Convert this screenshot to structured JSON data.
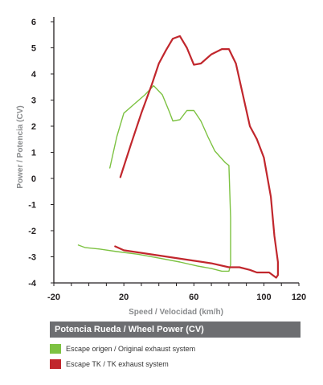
{
  "chart_data": {
    "type": "line",
    "xlabel": "Speed / Velocidad (km/h)",
    "ylabel": "Power / Potencia (CV)",
    "xlim": [
      -20,
      120
    ],
    "ylim": [
      -4,
      6
    ],
    "xticks": [
      "-20",
      "20",
      "60",
      "100",
      "120"
    ],
    "xtick_values": [
      -20,
      20,
      60,
      100,
      120
    ],
    "yticks": [
      "-4",
      "-3",
      "-2",
      "-1",
      "0",
      "1",
      "2",
      "3",
      "4",
      "5",
      "6"
    ],
    "ytick_values": [
      -4,
      -3,
      -2,
      -1,
      0,
      1,
      2,
      3,
      4,
      5,
      6
    ],
    "grid": false,
    "legend_title": "Potencia Rueda / Wheel Power (CV)",
    "series": [
      {
        "name": "Escape origen / Original exhaust system",
        "color": "#7dc242",
        "x": [
          12,
          16,
          20,
          26,
          32,
          37,
          42,
          46,
          48,
          52,
          56,
          60,
          64,
          68,
          72,
          76,
          78,
          80,
          81,
          81,
          80,
          76,
          70,
          62,
          52,
          40,
          28,
          16,
          6,
          -2,
          -6
        ],
        "y": [
          0.4,
          1.6,
          2.5,
          2.85,
          3.2,
          3.55,
          3.2,
          2.55,
          2.2,
          2.25,
          2.6,
          2.6,
          2.2,
          1.6,
          1.05,
          0.75,
          0.6,
          0.5,
          -1.5,
          -3.3,
          -3.55,
          -3.55,
          -3.45,
          -3.35,
          -3.2,
          -3.05,
          -2.9,
          -2.8,
          -2.7,
          -2.65,
          -2.55
        ]
      },
      {
        "name": "Escape TK  / TK exhaust  system",
        "color": "#c1272d",
        "x": [
          18,
          24,
          30,
          36,
          40,
          44,
          48,
          52,
          56,
          60,
          64,
          70,
          76,
          80,
          84,
          88,
          92,
          96,
          100,
          104,
          106,
          108,
          108,
          107,
          103,
          100,
          98,
          96,
          92,
          86,
          80,
          70,
          60,
          50,
          40,
          30,
          20,
          15
        ],
        "y": [
          0.05,
          1.3,
          2.5,
          3.6,
          4.4,
          4.9,
          5.35,
          5.45,
          5.0,
          4.35,
          4.4,
          4.75,
          4.95,
          4.95,
          4.4,
          3.2,
          2.0,
          1.5,
          0.8,
          -0.7,
          -2.2,
          -3.2,
          -3.7,
          -3.8,
          -3.6,
          -3.6,
          -3.6,
          -3.6,
          -3.5,
          -3.4,
          -3.4,
          -3.25,
          -3.15,
          -3.05,
          -2.95,
          -2.85,
          -2.75,
          -2.6
        ]
      }
    ]
  }
}
